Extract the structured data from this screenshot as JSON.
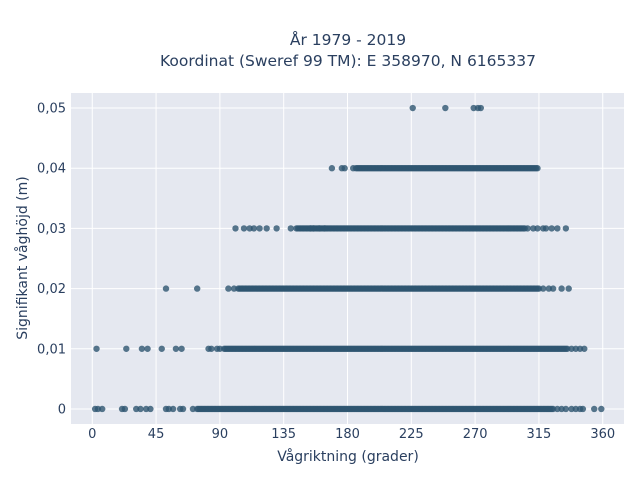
{
  "chart_data": {
    "type": "scatter",
    "title_line1": "År 1979 - 2019",
    "title_line2": "Koordinat (Sweref 99 TM): E 358970, N 6165337",
    "xlabel": "Vågriktning (grader)",
    "ylabel": "Signifikant våghöjd (m)",
    "xlim": [
      -15,
      375
    ],
    "ylim": [
      -0.0025,
      0.0525
    ],
    "xticks": [
      0,
      45,
      90,
      135,
      180,
      225,
      270,
      315,
      360
    ],
    "xtick_labels": [
      "0",
      "45",
      "90",
      "135",
      "180",
      "225",
      "270",
      "315",
      "360"
    ],
    "yticks": [
      0,
      0.01,
      0.02,
      0.03,
      0.04,
      0.05
    ],
    "ytick_labels": [
      "0",
      "0,01",
      "0,02",
      "0,03",
      "0,04",
      "0,05"
    ],
    "grid": true,
    "marker_color": "#2e5570",
    "plot_bg": "#e5e8f0",
    "bands": [
      {
        "y": 0,
        "dense_range": [
          75,
          325
        ],
        "sparse_x": [
          2,
          4,
          7,
          21,
          23,
          31,
          34,
          38,
          41,
          52,
          54,
          57,
          62,
          64,
          71,
          74,
          328,
          331,
          334,
          338,
          341,
          344,
          346,
          354,
          359
        ]
      },
      {
        "y": 0.01,
        "dense_range": [
          93,
          335
        ],
        "sparse_x": [
          3,
          24,
          35,
          39,
          49,
          59,
          63,
          82,
          84,
          88,
          90,
          338,
          341,
          344,
          347
        ]
      },
      {
        "y": 0.02,
        "dense_range": [
          103,
          315
        ],
        "sparse_x": [
          52,
          74,
          96,
          100,
          318,
          322,
          325,
          331,
          336
        ]
      },
      {
        "y": 0.03,
        "dense_range": [
          144,
          305
        ],
        "sparse_x": [
          101,
          107,
          111,
          114,
          118,
          123,
          130,
          140,
          154,
          156,
          160,
          164,
          307,
          311,
          314,
          318,
          320,
          324,
          328,
          334
        ]
      },
      {
        "y": 0.04,
        "dense_range": [
          186,
          314
        ],
        "sparse_x": [
          169,
          176,
          178,
          184
        ]
      },
      {
        "y": 0.05,
        "dense_range": null,
        "sparse_x": [
          226,
          249,
          269,
          272,
          274
        ]
      }
    ]
  }
}
